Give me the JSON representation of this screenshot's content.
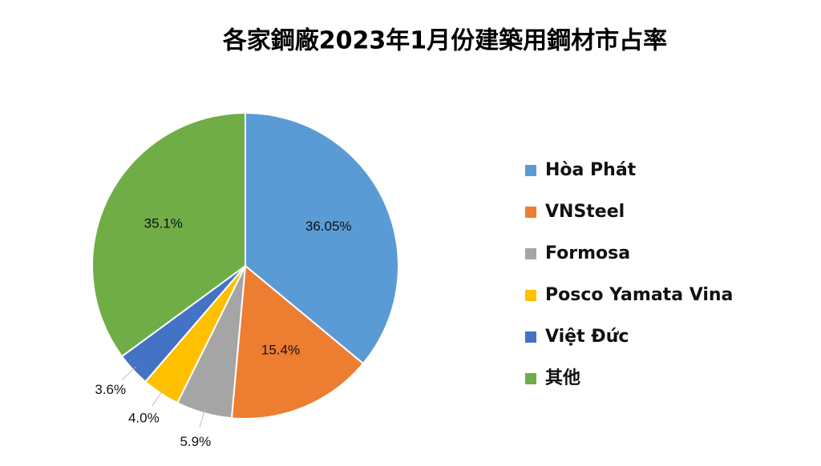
{
  "chart_data": {
    "type": "pie",
    "title": "各家鋼廠2023年1月份建築用鋼材市占率",
    "categories": [
      "Hòa Phát",
      "VNSteel",
      "Formosa",
      "Posco Yamata Vina",
      "Việt Đức",
      "其他"
    ],
    "values": [
      36.05,
      15.4,
      5.9,
      4.0,
      3.6,
      35.1
    ],
    "value_labels": [
      "36.05%",
      "15.4%",
      "5.9%",
      "4.0%",
      "3.6%",
      "35.1%"
    ],
    "colors": [
      "#5b9bd5",
      "#ed7d31",
      "#a5a5a5",
      "#ffc000",
      "#4472c4",
      "#70ad47"
    ],
    "legend": "right"
  }
}
